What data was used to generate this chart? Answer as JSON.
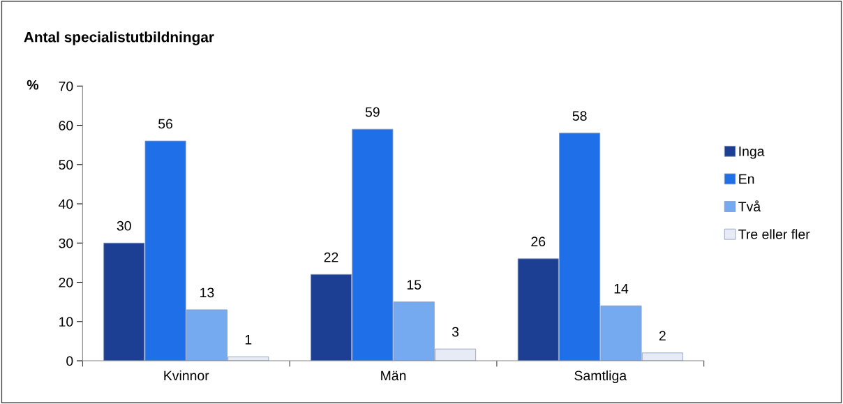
{
  "chart_data": {
    "type": "bar",
    "title": "Antal specialistutbildningar",
    "ylabel": "%",
    "categories": [
      "Kvinnor",
      "Män",
      "Samtliga"
    ],
    "series": [
      {
        "name": "Inga",
        "color": "#1c3f94",
        "values": [
          30,
          22,
          26
        ]
      },
      {
        "name": "En",
        "color": "#1f6fe8",
        "values": [
          56,
          59,
          58
        ]
      },
      {
        "name": "Två",
        "color": "#76aaf0",
        "values": [
          13,
          15,
          14
        ]
      },
      {
        "name": "Tre eller fler",
        "color": "#e6ebf5",
        "values": [
          1,
          3,
          2
        ]
      }
    ],
    "ylim": [
      0,
      70
    ],
    "yticks": [
      0,
      10,
      20,
      30,
      40,
      50,
      60,
      70
    ],
    "grid": false,
    "legend": "right",
    "data_labels": true
  }
}
